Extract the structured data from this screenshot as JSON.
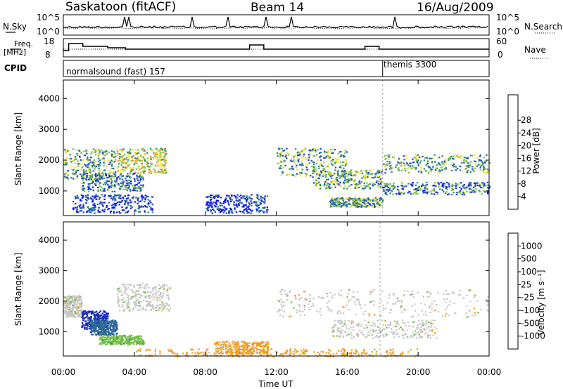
{
  "header": {
    "station": "Saskatoon (fitACF)",
    "beam": "Beam 14",
    "date": "16/Aug/2009"
  },
  "strips": {
    "nsky_label": "N.Sky",
    "nsky_ticks": [
      "10^5",
      "10^0"
    ],
    "nsearch_label": "N.Search",
    "nsearch_ticks": [
      "10^5",
      "10^0"
    ],
    "freq_label_1": "Freq.",
    "freq_label_2": "[MHz]",
    "freq_ticks": [
      "18",
      "8"
    ],
    "nave_label": "Nave",
    "nave_ticks": [
      "60",
      "0"
    ],
    "cpid_label": "CPID",
    "cpid_modes": [
      {
        "name": "normalsound (fast) 157",
        "start_hour": 0.05
      },
      {
        "name": "themis 3300",
        "start_hour": 18.0
      }
    ]
  },
  "chart_data": [
    {
      "type": "heatmap",
      "name": "power-panel",
      "ylabel": "Slant Range [km]",
      "xlabel": "",
      "xlim": [
        0,
        24
      ],
      "ylim": [
        200,
        4600
      ],
      "yticks": [
        "1000",
        "2000",
        "3000",
        "4000"
      ],
      "colorbar": {
        "label": "Power [dB]",
        "ticks": [
          "4",
          "8",
          "12",
          "16",
          "20",
          "24",
          "28"
        ],
        "colors": [
          "#1414f0",
          "#1e50c8",
          "#2f8a7a",
          "#7fc040",
          "#f0e030",
          "#f0a020",
          "#f07010",
          "#e82a10",
          "#e00000"
        ]
      },
      "echo_regions": [
        {
          "t": [
            0.0,
            3.0
          ],
          "r": [
            1400,
            2400
          ],
          "level": 14
        },
        {
          "t": [
            1.0,
            4.5
          ],
          "r": [
            1000,
            1600
          ],
          "level": 12
        },
        {
          "t": [
            3.0,
            5.8
          ],
          "r": [
            1600,
            2400
          ],
          "level": 18
        },
        {
          "t": [
            0.5,
            5.0
          ],
          "r": [
            300,
            900
          ],
          "level": 8
        },
        {
          "t": [
            8.0,
            11.5
          ],
          "r": [
            300,
            900
          ],
          "level": 6
        },
        {
          "t": [
            12.0,
            16.0
          ],
          "r": [
            1500,
            2400
          ],
          "level": 16
        },
        {
          "t": [
            14.0,
            18.0
          ],
          "r": [
            1100,
            1700
          ],
          "level": 14
        },
        {
          "t": [
            15.0,
            18.0
          ],
          "r": [
            500,
            800
          ],
          "level": 16
        },
        {
          "t": [
            18.0,
            24.0
          ],
          "r": [
            1600,
            2200
          ],
          "level": 14
        },
        {
          "t": [
            18.0,
            24.0
          ],
          "r": [
            900,
            1300
          ],
          "level": 10
        }
      ]
    },
    {
      "type": "heatmap",
      "name": "velocity-panel",
      "ylabel": "Slant Range [km]",
      "xlabel": "Time UT",
      "xlim": [
        0,
        24
      ],
      "ylim": [
        200,
        4600
      ],
      "xticks": [
        "00:00",
        "04:00",
        "08:00",
        "12:00",
        "16:00",
        "20:00",
        "00:00"
      ],
      "yticks": [
        "1000",
        "2000",
        "3000",
        "4000"
      ],
      "colorbar": {
        "label": "Velocity [m s⁻¹]",
        "ticks": [
          "1000",
          "500",
          "100",
          "25",
          "-25",
          "-100",
          "-500",
          "-1000"
        ],
        "colors": [
          "#1a2ab8",
          "#2a6a9a",
          "#3a8a50",
          "#70c040",
          "#c8c8c8",
          "#f0a020",
          "#f07010",
          "#e01010",
          "#ff0000"
        ]
      },
      "echo_regions": [
        {
          "t": [
            0.0,
            1.0
          ],
          "r": [
            1500,
            2200
          ],
          "v": 0
        },
        {
          "t": [
            1.0,
            2.5
          ],
          "r": [
            1100,
            1700
          ],
          "v": 500
        },
        {
          "t": [
            1.5,
            3.0
          ],
          "r": [
            900,
            1400
          ],
          "v": 200
        },
        {
          "t": [
            3.0,
            6.0
          ],
          "r": [
            1700,
            2600
          ],
          "v": 0
        },
        {
          "t": [
            2.0,
            4.5
          ],
          "r": [
            600,
            900
          ],
          "v": 60
        },
        {
          "t": [
            8.5,
            11.5
          ],
          "r": [
            300,
            700
          ],
          "v": -100
        },
        {
          "t": [
            12.0,
            24.0
          ],
          "r": [
            1500,
            2400
          ],
          "v": 0
        },
        {
          "t": [
            15.0,
            21.0
          ],
          "r": [
            800,
            1400
          ],
          "v": 0
        },
        {
          "t": [
            4.0,
            20.0
          ],
          "r": [
            200,
            450
          ],
          "v": -60
        }
      ]
    }
  ]
}
